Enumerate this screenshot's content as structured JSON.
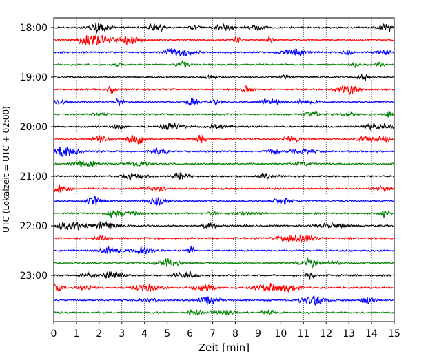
{
  "chart_data": {
    "type": "line",
    "title": "",
    "xlabel": "Zeit  [min]",
    "ylabel": "UTC (Lokalzeit = UTC + 02:00)",
    "xlim": [
      0,
      15
    ],
    "x_ticks": [
      0,
      1,
      2,
      3,
      4,
      5,
      6,
      7,
      8,
      9,
      10,
      11,
      12,
      13,
      14,
      15
    ],
    "y_ticks": [
      "18:00",
      "19:00",
      "20:00",
      "21:00",
      "22:00",
      "23:00"
    ],
    "row_interval_minutes": 15,
    "first_row": "18:00",
    "row_count": 24,
    "trace_colors": [
      "#000000",
      "#ff0000",
      "#0000ff",
      "#008000"
    ],
    "vertical_grid": true,
    "grid_style": "dotted",
    "waveform_note": "",
    "series": []
  }
}
